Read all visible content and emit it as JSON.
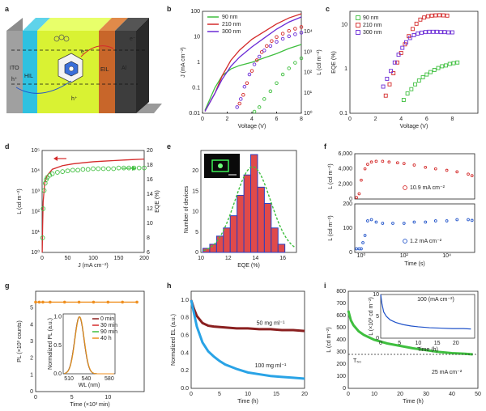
{
  "panels": {
    "a": {
      "letter": "a",
      "layers": [
        "ITO",
        "HIL",
        "EIL",
        "Al"
      ],
      "carriers": [
        "h⁺",
        "h⁺",
        "e⁻",
        "e⁻"
      ]
    },
    "b": {
      "letter": "b"
    },
    "c": {
      "letter": "c"
    },
    "d": {
      "letter": "d"
    },
    "e": {
      "letter": "e"
    },
    "f": {
      "letter": "f"
    },
    "g": {
      "letter": "g"
    },
    "h": {
      "letter": "h"
    },
    "i": {
      "letter": "i"
    }
  },
  "colors": {
    "green": "#3fbf3f",
    "red": "#d42a2a",
    "purple": "#6a2bd6",
    "blue": "#1f52c9",
    "darkred": "#8a1f1f",
    "lightblue": "#29a3e6",
    "orange": "#ef8f1f",
    "histfill": "#e04a4a",
    "histedge": "#2a3fbf"
  },
  "chart_data": [
    {
      "panel": "b",
      "type": "line",
      "xlabel": "Voltage (V)",
      "ylabel": "J (mA cm⁻²)",
      "y2label": "L (cd m⁻²)",
      "xlim": [
        0,
        8
      ],
      "ylim": [
        0.01,
        100
      ],
      "ylog": true,
      "y2lim": [
        1,
        100000
      ],
      "y2log": true,
      "xticks": [
        0,
        2,
        4,
        6,
        8
      ],
      "yticks": [
        "0.01",
        "0.1",
        "1",
        "10",
        "100"
      ],
      "y2ticks": [
        "10⁰",
        "10¹",
        "10²",
        "10³",
        "10⁴"
      ],
      "legend": [
        "90 nm",
        "210 nm",
        "300 nm"
      ],
      "series": [
        {
          "name": "90 nm",
          "color": "green",
          "kind": "line",
          "x": [
            0.2,
            1,
            1.6,
            2.3,
            3,
            4,
            5,
            6,
            7,
            8
          ],
          "y": [
            0.013,
            0.1,
            0.3,
            0.55,
            0.75,
            1.0,
            1.5,
            2.2,
            3.5,
            5
          ]
        },
        {
          "name": "210 nm",
          "color": "red",
          "kind": "line",
          "x": [
            0.2,
            1,
            1.6,
            2.3,
            3,
            4,
            5,
            6,
            7,
            8
          ],
          "y": [
            0.012,
            0.06,
            0.3,
            1.2,
            3,
            8,
            16,
            32,
            55,
            80
          ]
        },
        {
          "name": "300 nm",
          "color": "purple",
          "kind": "line",
          "x": [
            0.2,
            1,
            1.6,
            2.3,
            3,
            4,
            5,
            6,
            7,
            8
          ],
          "y": [
            0.012,
            0.06,
            0.22,
            0.7,
            1.6,
            4,
            9,
            20,
            38,
            60
          ]
        },
        {
          "name": "90 nm",
          "color": "green",
          "kind": "markers",
          "axis": "y2",
          "x": [
            4.2,
            4.6,
            5,
            5.5,
            6,
            6.5,
            7,
            7.5,
            8
          ],
          "y": [
            1.2,
            2,
            5,
            12,
            30,
            80,
            160,
            300,
            500
          ]
        },
        {
          "name": "210 nm",
          "color": "red",
          "kind": "markers",
          "axis": "y2",
          "x": [
            3.0,
            3.3,
            3.6,
            4,
            4.4,
            4.8,
            5.2,
            5.6,
            6,
            6.5,
            7,
            7.5,
            8
          ],
          "y": [
            3,
            8,
            30,
            120,
            400,
            1000,
            2000,
            3500,
            5500,
            8000,
            11000,
            14000,
            17000
          ]
        },
        {
          "name": "300 nm",
          "color": "purple",
          "kind": "markers",
          "axis": "y2",
          "x": [
            2.8,
            3.1,
            3.4,
            3.8,
            4.2,
            4.6,
            5,
            5.5,
            6,
            6.5,
            7,
            7.5,
            8
          ],
          "y": [
            2,
            5,
            20,
            80,
            250,
            600,
            1200,
            2000,
            3200,
            4500,
            6000,
            7500,
            9000
          ]
        }
      ]
    },
    {
      "panel": "c",
      "type": "scatter",
      "xlabel": "Voltage (V)",
      "ylabel": "EQE (%)",
      "xlim": [
        0,
        10
      ],
      "ylim": [
        0.1,
        20
      ],
      "ylog": true,
      "xticks": [
        0,
        2,
        4,
        6,
        8
      ],
      "yticks": [
        "0.1",
        "1",
        "10"
      ],
      "legend": [
        "90 nm",
        "210 nm",
        "300 nm"
      ],
      "series": [
        {
          "name": "90 nm",
          "color": "green",
          "x": [
            4.2,
            4.5,
            4.8,
            5.1,
            5.4,
            5.7,
            6,
            6.3,
            6.6,
            6.9,
            7.2,
            7.5,
            7.8,
            8.1,
            8.4
          ],
          "y": [
            0.2,
            0.28,
            0.35,
            0.45,
            0.55,
            0.65,
            0.75,
            0.85,
            0.95,
            1.05,
            1.15,
            1.2,
            1.3,
            1.35,
            1.4
          ]
        },
        {
          "name": "210 nm",
          "color": "red",
          "x": [
            2.8,
            3.1,
            3.4,
            3.7,
            4,
            4.3,
            4.6,
            4.9,
            5.2,
            5.5,
            5.8,
            6.1,
            6.4,
            6.7,
            7,
            7.3,
            7.6
          ],
          "y": [
            0.25,
            0.45,
            0.8,
            1.4,
            2.3,
            3.6,
            5.5,
            8,
            10.5,
            13,
            14.5,
            15.5,
            16,
            16.2,
            16.3,
            16.2,
            16
          ]
        },
        {
          "name": "300 nm",
          "color": "purple",
          "x": [
            2.6,
            2.9,
            3.2,
            3.5,
            3.8,
            4.1,
            4.4,
            4.7,
            5,
            5.3,
            5.6,
            5.9,
            6.2,
            6.5,
            6.8,
            7.1,
            7.4,
            7.7,
            8
          ],
          "y": [
            0.4,
            0.6,
            0.9,
            1.4,
            2.1,
            3,
            4,
            5,
            5.8,
            6.3,
            6.6,
            6.8,
            6.9,
            6.9,
            6.9,
            6.8,
            6.8,
            6.7,
            6.7
          ]
        }
      ]
    },
    {
      "panel": "d",
      "type": "line",
      "xlabel": "J (mA cm⁻²)",
      "ylabel": "L (cd m⁻²)",
      "y2label": "EQE (%)",
      "xlim": [
        0,
        200
      ],
      "ylim": [
        1,
        100000
      ],
      "ylog": true,
      "y2lim": [
        6,
        20
      ],
      "xticks": [
        0,
        50,
        100,
        150,
        200
      ],
      "yticks": [
        "10⁰",
        "10¹",
        "10²",
        "10³",
        "10⁴",
        "10⁵"
      ],
      "y2ticks": [
        "6",
        "8",
        "10",
        "12",
        "14",
        "16",
        "18",
        "20"
      ],
      "series": [
        {
          "name": "L",
          "color": "red",
          "kind": "line",
          "x": [
            0.2,
            1,
            2,
            5,
            10,
            20,
            40,
            60,
            80,
            100,
            120,
            140,
            160,
            180,
            200
          ],
          "y": [
            1,
            20,
            300,
            2500,
            6000,
            12000,
            18000,
            22000,
            25000,
            28000,
            30000,
            32000,
            34000,
            36000,
            38000
          ]
        },
        {
          "name": "EQE",
          "color": "green",
          "kind": "markers",
          "axis": "y2",
          "x": [
            1,
            2,
            4,
            6,
            8,
            10,
            15,
            20,
            30,
            40,
            50,
            60,
            70,
            80,
            90,
            100,
            110,
            120,
            130,
            140,
            150,
            160,
            170,
            180,
            190,
            200
          ],
          "y": [
            8,
            12,
            14.5,
            15.5,
            16,
            16.3,
            16.6,
            16.8,
            17,
            17.1,
            17.2,
            17.3,
            17.3,
            17.4,
            17.4,
            17.5,
            17.5,
            17.5,
            17.5,
            17.5,
            17.6,
            17.6,
            17.6,
            17.6,
            17.6,
            17.6
          ]
        }
      ]
    },
    {
      "panel": "e",
      "type": "bar",
      "xlabel": "EQE (%)",
      "ylabel": "Number of devices",
      "xlim": [
        10,
        17
      ],
      "ylim": [
        0,
        25
      ],
      "xticks": [
        10,
        12,
        14,
        16
      ],
      "yticks": [
        0,
        5,
        10,
        15,
        20
      ],
      "categories": [
        "10.4",
        "10.9",
        "11.4",
        "11.9",
        "12.4",
        "12.9",
        "13.4",
        "13.9",
        "14.4",
        "14.9",
        "15.4",
        "15.9"
      ],
      "values": [
        1,
        2,
        4,
        6,
        9,
        14,
        19,
        24,
        16,
        12,
        6,
        2
      ],
      "fit": {
        "center": 13.8,
        "amplitude": 21,
        "sigma": 1.3
      }
    },
    {
      "panel": "f",
      "type": "scatter",
      "xlabel": "Time (s)",
      "xlim": [
        0.5,
        200000
      ],
      "xlog": true,
      "xticks": [
        "10⁰",
        "10²",
        "10⁴"
      ],
      "subplots": [
        {
          "ylabel": "L (cd m⁻²)",
          "ylim": [
            0,
            6000
          ],
          "yticks": [
            "0",
            "2,000",
            "4,000",
            "6,000"
          ],
          "legend": "10.9 mA cm⁻²",
          "color": "red",
          "x": [
            0.6,
            0.8,
            1,
            1.5,
            2,
            3,
            5,
            10,
            20,
            50,
            100,
            300,
            1000,
            3000,
            10000,
            30000,
            100000,
            150000
          ],
          "y": [
            200,
            700,
            2500,
            4000,
            4600,
            4900,
            5000,
            5000,
            4900,
            4800,
            4700,
            4500,
            4200,
            4000,
            3800,
            3600,
            3300,
            3100
          ]
        },
        {
          "ylabel": "L (cd m⁻²)",
          "ylim": [
            0,
            200
          ],
          "yticks": [
            "0",
            "100",
            "200"
          ],
          "legend": "1.2 mA cm⁻²",
          "color": "blue",
          "x": [
            0.6,
            0.8,
            1,
            1.2,
            1.5,
            2,
            3,
            5,
            10,
            30,
            100,
            300,
            1000,
            3000,
            10000,
            30000,
            100000,
            150000
          ],
          "y": [
            15,
            15,
            15,
            40,
            70,
            130,
            135,
            125,
            120,
            120,
            120,
            125,
            125,
            130,
            130,
            135,
            135,
            132
          ]
        }
      ]
    },
    {
      "panel": "g",
      "type": "line",
      "xlabel": "Time (×10³ min)",
      "ylabel": "PL (×10³ counts)",
      "xlim": [
        0,
        15
      ],
      "ylim": [
        0,
        6
      ],
      "xticks": [
        0,
        5,
        10
      ],
      "yticks": [
        0,
        1,
        2,
        3,
        4,
        5
      ],
      "series": [
        {
          "name": "PL",
          "color": "orange",
          "x": [
            0,
            0.5,
            1,
            2,
            4,
            6,
            8,
            10,
            12,
            14
          ],
          "y": [
            5.35,
            5.35,
            5.35,
            5.35,
            5.35,
            5.35,
            5.35,
            5.35,
            5.35,
            5.35
          ]
        }
      ],
      "inset": {
        "xlabel": "WL (nm)",
        "ylabel": "Normalized PL (a.u.)",
        "xlim": [
          500,
          590
        ],
        "ylim": [
          0,
          1.05
        ],
        "xticks": [
          510,
          540,
          580
        ],
        "yticks": [
          "0.0",
          "0.5",
          "1.0"
        ],
        "legend": [
          "0 min",
          "30 min",
          "90 min",
          "40 h"
        ],
        "legend_colors": [
          "darkred",
          "red",
          "green",
          "orange"
        ],
        "peak": 528,
        "fwhm": 19
      }
    },
    {
      "panel": "h",
      "type": "line",
      "xlabel": "Time (h)",
      "ylabel": "Normalized EL (a.u.)",
      "xlim": [
        0,
        20
      ],
      "ylim": [
        0,
        1.1
      ],
      "xticks": [
        0,
        5,
        10,
        15,
        20
      ],
      "yticks": [
        "0.0",
        "0.2",
        "0.4",
        "0.6",
        "0.8",
        "1.0"
      ],
      "series": [
        {
          "name": "50 mg ml⁻¹",
          "color": "darkred",
          "x": [
            0,
            0.5,
            1,
            2,
            3,
            4,
            6,
            8,
            10,
            12,
            14,
            16,
            18,
            20
          ],
          "y": [
            1,
            0.9,
            0.82,
            0.74,
            0.71,
            0.7,
            0.69,
            0.68,
            0.68,
            0.67,
            0.67,
            0.66,
            0.66,
            0.65
          ]
        },
        {
          "name": "100 mg ml⁻¹",
          "color": "lightblue",
          "x": [
            0,
            0.5,
            1,
            2,
            3,
            4,
            5,
            6,
            8,
            10,
            12,
            14,
            16,
            18,
            20
          ],
          "y": [
            1,
            0.85,
            0.7,
            0.52,
            0.42,
            0.36,
            0.31,
            0.27,
            0.22,
            0.18,
            0.16,
            0.14,
            0.13,
            0.12,
            0.11
          ]
        }
      ]
    },
    {
      "panel": "i",
      "type": "line",
      "xlabel": "Time (h)",
      "ylabel": "L (cd m⁻²)",
      "xlim": [
        0,
        50
      ],
      "ylim": [
        0,
        800
      ],
      "xticks": [
        0,
        10,
        20,
        30,
        40,
        50
      ],
      "yticks": [
        0,
        100,
        200,
        300,
        400,
        500,
        600,
        700,
        800
      ],
      "annotation": "T₅₀",
      "legend": "25 mA cm⁻²",
      "t50_level": 280,
      "series": [
        {
          "name": "L",
          "color": "green",
          "x": [
            0,
            0.5,
            1,
            2,
            4,
            6,
            8,
            10,
            15,
            20,
            25,
            30,
            35,
            40,
            45,
            48
          ],
          "y": [
            640,
            600,
            560,
            520,
            470,
            440,
            420,
            400,
            370,
            350,
            330,
            315,
            300,
            290,
            285,
            280
          ]
        }
      ],
      "inset": {
        "title": "100 (mA cm⁻²)",
        "xlabel": "Time (h)",
        "ylabel": "L (×10³ cd m⁻²)",
        "xlim": [
          0,
          25
        ],
        "ylim": [
          0,
          10
        ],
        "xticks": [
          0,
          5,
          10,
          15,
          20
        ],
        "yticks": [
          0,
          5,
          10
        ],
        "x": [
          0,
          0.3,
          0.8,
          1.5,
          2.5,
          4,
          6,
          8,
          10,
          13,
          16,
          19,
          22,
          24
        ],
        "y": [
          10,
          8,
          6,
          5,
          4.2,
          3.6,
          3.1,
          2.8,
          2.6,
          2.4,
          2.3,
          2.2,
          2.2,
          2.1
        ]
      }
    }
  ]
}
